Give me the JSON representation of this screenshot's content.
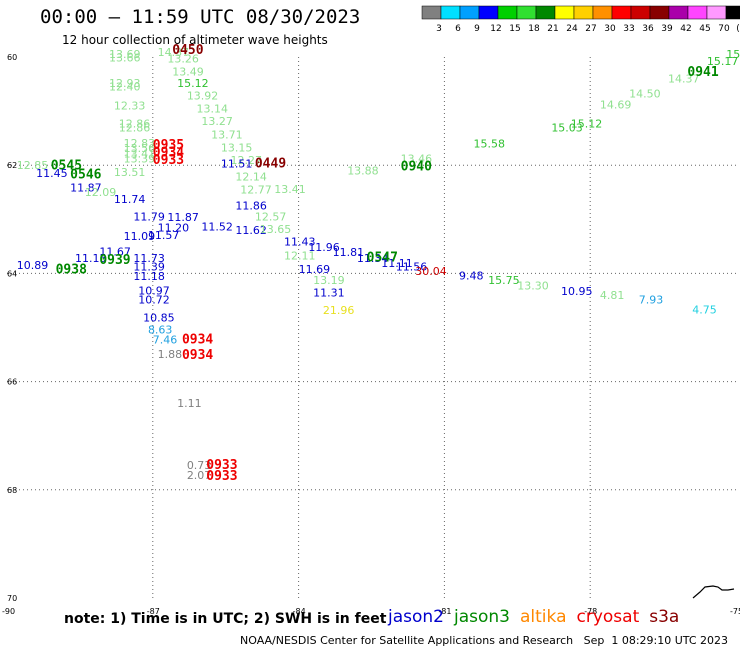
{
  "title": "00:00 – 11:59 UTC 08/30/2023",
  "subtitle": "12 hour collection of altimeter wave heights",
  "note": "note: 1) Time is in UTC; 2) SWH is in feet",
  "credit": "NOAA/NESDIS Center for Satellite Applications and Research   Sep  1 08:29:10 UTC 2023",
  "satellites": [
    {
      "name": "jason2",
      "color": "#0000cc"
    },
    {
      "name": "jason3",
      "color": "#008800"
    },
    {
      "name": "altika",
      "color": "#ff8800"
    },
    {
      "name": "cryosat",
      "color": "#ee0000"
    },
    {
      "name": "s3a",
      "color": "#880000"
    }
  ],
  "color_scale": {
    "labels": [
      "3",
      "6",
      "9",
      "12",
      "15",
      "18",
      "21",
      "24",
      "27",
      "30",
      "33",
      "36",
      "39",
      "42",
      "45",
      "70",
      "(ft)"
    ],
    "colors": [
      "#808080",
      "#00e0ff",
      "#00a0ff",
      "#0000ff",
      "#00d000",
      "#30e030",
      "#008800",
      "#ffff00",
      "#ffd000",
      "#ff9000",
      "#ff0000",
      "#cc0000",
      "#880000",
      "#aa00aa",
      "#ff44ff",
      "#ff99ff",
      "#000000"
    ]
  },
  "latitudes": [
    "60",
    "62",
    "64",
    "66",
    "68",
    "70"
  ],
  "longitudes": [
    "-90",
    "-87",
    "-84",
    "-81",
    "-78",
    "-75"
  ],
  "readings": [
    {
      "t": "13.69",
      "lon": -87.9,
      "lat": 60.02,
      "c": "#90e090"
    },
    {
      "t": "13.66",
      "lon": -87.9,
      "lat": 60.08,
      "c": "#90e090"
    },
    {
      "t": "14.37",
      "lon": -86.9,
      "lat": 59.98,
      "c": "#90e090"
    },
    {
      "t": "13.26",
      "lon": -86.7,
      "lat": 60.1,
      "c": "#90e090"
    },
    {
      "t": "13.49",
      "lon": -86.6,
      "lat": 60.34,
      "c": "#90e090"
    },
    {
      "t": "15.12",
      "lon": -86.5,
      "lat": 60.55,
      "c": "#30c030"
    },
    {
      "t": "13.92",
      "lon": -86.3,
      "lat": 60.79,
      "c": "#90e090"
    },
    {
      "t": "13.14",
      "lon": -86.1,
      "lat": 61.03,
      "c": "#90e090"
    },
    {
      "t": "13.27",
      "lon": -86.0,
      "lat": 61.26,
      "c": "#90e090"
    },
    {
      "t": "13.71",
      "lon": -85.8,
      "lat": 61.51,
      "c": "#90e090"
    },
    {
      "t": "13.15",
      "lon": -85.6,
      "lat": 61.75,
      "c": "#90e090"
    },
    {
      "t": "12.27",
      "lon": -85.4,
      "lat": 61.98,
      "c": "#90e090"
    },
    {
      "t": "11.51",
      "lon": -85.6,
      "lat": 62.04,
      "c": "#0000cc"
    },
    {
      "t": "12.14",
      "lon": -85.3,
      "lat": 62.28,
      "c": "#90e090"
    },
    {
      "t": "12.77",
      "lon": -85.2,
      "lat": 62.52,
      "c": "#90e090"
    },
    {
      "t": "11.86",
      "lon": -85.3,
      "lat": 62.82,
      "c": "#0000cc"
    },
    {
      "t": "12.57",
      "lon": -84.9,
      "lat": 63.02,
      "c": "#90e090"
    },
    {
      "t": "11.62",
      "lon": -85.3,
      "lat": 63.27,
      "c": "#0000cc"
    },
    {
      "t": "13.65",
      "lon": -84.8,
      "lat": 63.25,
      "c": "#90e090"
    },
    {
      "t": "11.43",
      "lon": -84.3,
      "lat": 63.48,
      "c": "#0000cc"
    },
    {
      "t": "12.11",
      "lon": -84.3,
      "lat": 63.74,
      "c": "#90e090"
    },
    {
      "t": "11.96",
      "lon": -83.8,
      "lat": 63.59,
      "c": "#0000cc"
    },
    {
      "t": "11.69",
      "lon": -84.0,
      "lat": 63.99,
      "c": "#0000cc"
    },
    {
      "t": "13.19",
      "lon": -83.7,
      "lat": 64.2,
      "c": "#90e090"
    },
    {
      "t": "11.31",
      "lon": -83.7,
      "lat": 64.43,
      "c": "#0000cc"
    },
    {
      "t": "21.96",
      "lon": -83.5,
      "lat": 64.75,
      "c": "#e8e020"
    },
    {
      "t": "11.81",
      "lon": -83.3,
      "lat": 63.68,
      "c": "#0000cc"
    },
    {
      "t": "11.34",
      "lon": -82.8,
      "lat": 63.79,
      "c": "#0000cc"
    },
    {
      "t": "11.11",
      "lon": -82.3,
      "lat": 63.88,
      "c": "#0000cc"
    },
    {
      "t": "11.56",
      "lon": -82.0,
      "lat": 63.95,
      "c": "#0000cc"
    },
    {
      "t": "30.04",
      "lon": -81.6,
      "lat": 64.03,
      "c": "#cc0000"
    },
    {
      "t": "9.48",
      "lon": -80.7,
      "lat": 64.11,
      "c": "#0000cc"
    },
    {
      "t": "15.75",
      "lon": -80.1,
      "lat": 64.2,
      "c": "#30c030"
    },
    {
      "t": "13.30",
      "lon": -79.5,
      "lat": 64.3,
      "c": "#90e090"
    },
    {
      "t": "10.95",
      "lon": -78.6,
      "lat": 64.4,
      "c": "#0000cc"
    },
    {
      "t": "4.81",
      "lon": -77.8,
      "lat": 64.47,
      "c": "#90e090"
    },
    {
      "t": "7.93",
      "lon": -77.0,
      "lat": 64.56,
      "c": "#20a0e0"
    },
    {
      "t": "4.75",
      "lon": -75.9,
      "lat": 64.74,
      "c": "#20d0e0"
    },
    {
      "t": "12.93",
      "lon": -87.9,
      "lat": 60.55,
      "c": "#90e090"
    },
    {
      "t": "12.40",
      "lon": -87.9,
      "lat": 60.62,
      "c": "#90e090"
    },
    {
      "t": "12.33",
      "lon": -87.8,
      "lat": 60.97,
      "c": "#90e090"
    },
    {
      "t": "12.86",
      "lon": -87.7,
      "lat": 61.3,
      "c": "#90e090"
    },
    {
      "t": "12.86",
      "lon": -87.7,
      "lat": 61.38,
      "c": "#90e090"
    },
    {
      "t": "12.83",
      "lon": -87.6,
      "lat": 61.66,
      "c": "#90e090"
    },
    {
      "t": "13.56",
      "lon": -87.6,
      "lat": 61.76,
      "c": "#90e090"
    },
    {
      "t": "13.41",
      "lon": -87.6,
      "lat": 61.86,
      "c": "#90e090"
    },
    {
      "t": "13.39",
      "lon": -87.6,
      "lat": 61.95,
      "c": "#90e090"
    },
    {
      "t": "12.85",
      "lon": -89.8,
      "lat": 62.07,
      "c": "#90e090"
    },
    {
      "t": "11.45",
      "lon": -89.4,
      "lat": 62.22,
      "c": "#0000cc"
    },
    {
      "t": "13.51",
      "lon": -87.8,
      "lat": 62.2,
      "c": "#90e090"
    },
    {
      "t": "11.87",
      "lon": -88.7,
      "lat": 62.49,
      "c": "#0000cc"
    },
    {
      "t": "12.09",
      "lon": -88.4,
      "lat": 62.57,
      "c": "#90e090"
    },
    {
      "t": "11.74",
      "lon": -87.8,
      "lat": 62.7,
      "c": "#0000cc"
    },
    {
      "t": "11.79",
      "lon": -87.4,
      "lat": 63.02,
      "c": "#0000cc"
    },
    {
      "t": "11.87",
      "lon": -86.7,
      "lat": 63.03,
      "c": "#0000cc"
    },
    {
      "t": "11.20",
      "lon": -86.9,
      "lat": 63.23,
      "c": "#0000cc"
    },
    {
      "t": "11.52",
      "lon": -86.0,
      "lat": 63.21,
      "c": "#0000cc"
    },
    {
      "t": "11.57",
      "lon": -87.1,
      "lat": 63.36,
      "c": "#0000cc"
    },
    {
      "t": "11.09",
      "lon": -87.6,
      "lat": 63.38,
      "c": "#0000cc"
    },
    {
      "t": "11.67",
      "lon": -88.1,
      "lat": 63.67,
      "c": "#0000cc"
    },
    {
      "t": "11.15",
      "lon": -88.6,
      "lat": 63.79,
      "c": "#0000cc"
    },
    {
      "t": "10.89",
      "lon": -89.8,
      "lat": 63.92,
      "c": "#0000cc"
    },
    {
      "t": "11.73",
      "lon": -87.4,
      "lat": 63.79,
      "c": "#0000cc"
    },
    {
      "t": "11.39",
      "lon": -87.4,
      "lat": 63.95,
      "c": "#0000cc"
    },
    {
      "t": "11.18",
      "lon": -87.4,
      "lat": 64.12,
      "c": "#0000cc"
    },
    {
      "t": "10.97",
      "lon": -87.3,
      "lat": 64.39,
      "c": "#0000cc"
    },
    {
      "t": "10.72",
      "lon": -87.3,
      "lat": 64.56,
      "c": "#0000cc"
    },
    {
      "t": "10.85",
      "lon": -87.2,
      "lat": 64.89,
      "c": "#0000cc"
    },
    {
      "t": "8.63",
      "lon": -87.1,
      "lat": 65.11,
      "c": "#20a0e0"
    },
    {
      "t": "7.46",
      "lon": -87.0,
      "lat": 65.3,
      "c": "#20a0e0"
    },
    {
      "t": "1.88",
      "lon": -86.9,
      "lat": 65.56,
      "c": "#808080"
    },
    {
      "t": "1.11",
      "lon": -86.5,
      "lat": 66.47,
      "c": "#808080"
    },
    {
      "t": "0.73",
      "lon": -86.3,
      "lat": 67.62,
      "c": "#808080"
    },
    {
      "t": "2.07",
      "lon": -86.3,
      "lat": 67.8,
      "c": "#808080"
    },
    {
      "t": "13.41",
      "lon": -84.5,
      "lat": 62.51,
      "c": "#90e090"
    },
    {
      "t": "13.88",
      "lon": -83.0,
      "lat": 62.17,
      "c": "#90e090"
    },
    {
      "t": "13.46",
      "lon": -81.9,
      "lat": 61.95,
      "c": "#90e090"
    },
    {
      "t": "15.58",
      "lon": -80.4,
      "lat": 61.67,
      "c": "#30c030"
    },
    {
      "t": "15.03",
      "lon": -78.8,
      "lat": 61.38,
      "c": "#30c030"
    },
    {
      "t": "15.12",
      "lon": -78.4,
      "lat": 61.3,
      "c": "#30c030"
    },
    {
      "t": "15.07",
      "lon": -75.2,
      "lat": 60.02,
      "c": "#30c030"
    },
    {
      "t": "15.17",
      "lon": -75.6,
      "lat": 60.15,
      "c": "#30c030"
    },
    {
      "t": "14.37",
      "lon": -76.4,
      "lat": 60.47,
      "c": "#90e090"
    },
    {
      "t": "14.50",
      "lon": -77.2,
      "lat": 60.75,
      "c": "#90e090"
    },
    {
      "t": "14.69",
      "lon": -77.8,
      "lat": 60.95,
      "c": "#90e090"
    }
  ],
  "pass_times": [
    {
      "t": "0450",
      "lon": -86.6,
      "lat": 59.94,
      "c": "#880000"
    },
    {
      "t": "0941",
      "lon": -76.0,
      "lat": 60.35,
      "c": "#008800"
    },
    {
      "t": "0935",
      "lon": -87.0,
      "lat": 61.7,
      "c": "#ee0000"
    },
    {
      "t": "0934",
      "lon": -87.0,
      "lat": 61.84,
      "c": "#ee0000"
    },
    {
      "t": "0933",
      "lon": -87.0,
      "lat": 61.98,
      "c": "#ee0000"
    },
    {
      "t": "0449",
      "lon": -84.9,
      "lat": 62.04,
      "c": "#880000"
    },
    {
      "t": "0940",
      "lon": -81.9,
      "lat": 62.1,
      "c": "#008800"
    },
    {
      "t": "0545",
      "lon": -89.1,
      "lat": 62.08,
      "c": "#008800"
    },
    {
      "t": "0546",
      "lon": -88.7,
      "lat": 62.25,
      "c": "#008800"
    },
    {
      "t": "0939",
      "lon": -88.1,
      "lat": 63.83,
      "c": "#008800"
    },
    {
      "t": "0938",
      "lon": -89.0,
      "lat": 64.0,
      "c": "#008800"
    },
    {
      "t": "0547",
      "lon": -82.6,
      "lat": 63.78,
      "c": "#008800"
    },
    {
      "t": "0934",
      "lon": -86.4,
      "lat": 65.3,
      "c": "#ee0000"
    },
    {
      "t": "0934",
      "lon": -86.4,
      "lat": 65.58,
      "c": "#ee0000"
    },
    {
      "t": "0933",
      "lon": -85.9,
      "lat": 67.62,
      "c": "#ee0000"
    },
    {
      "t": "0933",
      "lon": -85.9,
      "lat": 67.82,
      "c": "#ee0000"
    }
  ]
}
